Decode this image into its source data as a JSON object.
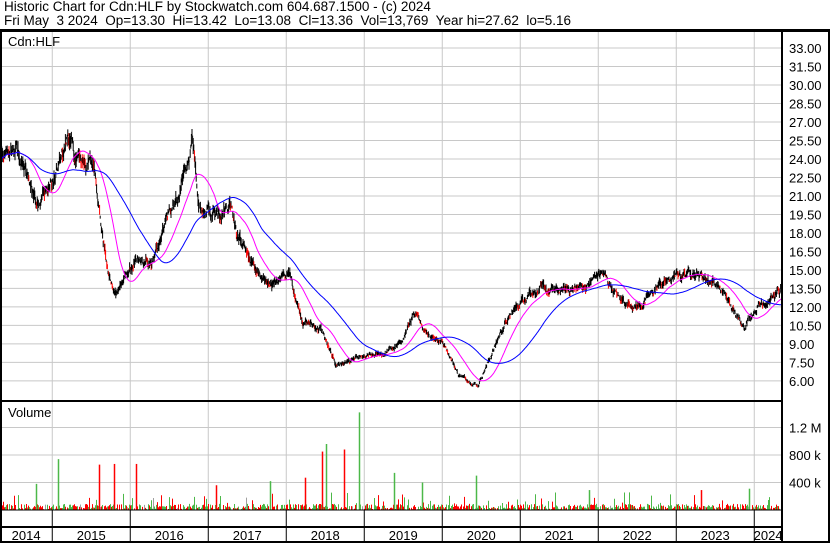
{
  "header": {
    "title": "Historic Chart for Cdn:HLF by Stockwatch.com 604.687.1500 - (c) 2024",
    "quote": "Fri May  3 2024  Op=13.30  Hi=13.42  Lo=13.08  Cl=13.36  Vol=13,769  Year hi=27.62  lo=5.16"
  },
  "chart_data": [
    {
      "type": "line",
      "title": "Cdn:HLF",
      "ylim": [
        5.16,
        33.0
      ],
      "yticks": [
        "33.00",
        "31.50",
        "30.00",
        "28.50",
        "27.00",
        "25.50",
        "24.00",
        "22.50",
        "21.00",
        "19.50",
        "18.00",
        "16.50",
        "15.00",
        "13.50",
        "12.00",
        "10.50",
        "9.00",
        "7.50",
        "6.00"
      ],
      "xticks": [
        "2014",
        "2015",
        "2016",
        "2017",
        "2018",
        "2019",
        "2020",
        "2021",
        "2022",
        "2023",
        "2024"
      ],
      "grid": true,
      "colors": {
        "price": "#000000",
        "price_down": "#ff0000",
        "ma_short": "#ff00ff",
        "ma_long": "#0000ff"
      },
      "series": [
        {
          "points": [
            [
              "2014-05",
              23.9
            ],
            [
              "2014-07",
              24.7
            ],
            [
              "2014-10",
              20.7
            ],
            [
              "2015-01",
              22.3
            ],
            [
              "2015-03",
              26.0
            ],
            [
              "2015-04",
              23.9
            ],
            [
              "2015-07",
              23.5
            ],
            [
              "2015-08",
              19.0
            ],
            [
              "2015-09",
              15.0
            ],
            [
              "2015-10",
              13.0
            ],
            [
              "2016-01",
              15.4
            ],
            [
              "2016-04",
              15.4
            ],
            [
              "2016-06",
              19.5
            ],
            [
              "2016-08",
              20.7
            ],
            [
              "2016-10",
              25.5
            ],
            [
              "2016-11",
              19.9
            ],
            [
              "2017-01",
              19.5
            ],
            [
              "2017-04",
              20.7
            ],
            [
              "2017-05",
              18.2
            ],
            [
              "2017-07",
              15.8
            ],
            [
              "2017-09",
              13.8
            ],
            [
              "2018-01",
              14.6
            ],
            [
              "2018-03",
              11.0
            ],
            [
              "2018-06",
              10.1
            ],
            [
              "2018-08",
              7.3
            ],
            [
              "2018-11",
              7.7
            ],
            [
              "2019-03",
              8.1
            ],
            [
              "2019-06",
              8.9
            ],
            [
              "2019-08",
              11.3
            ],
            [
              "2019-10",
              10.1
            ],
            [
              "2020-01",
              8.9
            ],
            [
              "2020-03",
              6.5
            ],
            [
              "2020-06",
              5.7
            ],
            [
              "2020-08",
              8.1
            ],
            [
              "2020-10",
              10.5
            ],
            [
              "2021-02",
              13.4
            ],
            [
              "2021-06",
              13.2
            ],
            [
              "2021-11",
              13.8
            ],
            [
              "2022-01",
              14.8
            ],
            [
              "2022-04",
              12.5
            ],
            [
              "2022-07",
              12.1
            ],
            [
              "2022-10",
              13.8
            ],
            [
              "2023-03",
              15.0
            ],
            [
              "2023-07",
              13.8
            ],
            [
              "2023-10",
              11.0
            ],
            [
              "2023-11",
              10.6
            ],
            [
              "2024-01",
              12.2
            ],
            [
              "2024-05",
              13.36
            ]
          ]
        }
      ]
    },
    {
      "type": "bar",
      "title": "Volume",
      "yticks": [
        "1.2 M",
        "800 k",
        "400 k"
      ],
      "ylim": [
        0,
        1750000
      ],
      "colors": {
        "up": "#4cb848",
        "down": "#ff0000",
        "flat": "#a0a0a0"
      },
      "spikes": [
        [
          "2014-10",
          380000,
          "up"
        ],
        [
          "2015-01",
          740000,
          "up"
        ],
        [
          "2015-07",
          660000,
          "down"
        ],
        [
          "2015-10",
          670000,
          "down"
        ],
        [
          "2016-01",
          670000,
          "down"
        ],
        [
          "2017-01",
          360000,
          "down"
        ],
        [
          "2017-10",
          420000,
          "up"
        ],
        [
          "2018-03",
          470000,
          "down"
        ],
        [
          "2018-06",
          960000,
          "up"
        ],
        [
          "2018-06",
          850000,
          "down"
        ],
        [
          "2018-09",
          880000,
          "down"
        ],
        [
          "2018-11",
          1420000,
          "up"
        ],
        [
          "2019-05",
          540000,
          "up"
        ],
        [
          "2019-09",
          400000,
          "up"
        ],
        [
          "2020-05",
          500000,
          "up"
        ],
        [
          "2021-11",
          290000,
          "up"
        ],
        [
          "2023-04",
          290000,
          "down"
        ],
        [
          "2023-11",
          310000,
          "up"
        ]
      ]
    }
  ]
}
